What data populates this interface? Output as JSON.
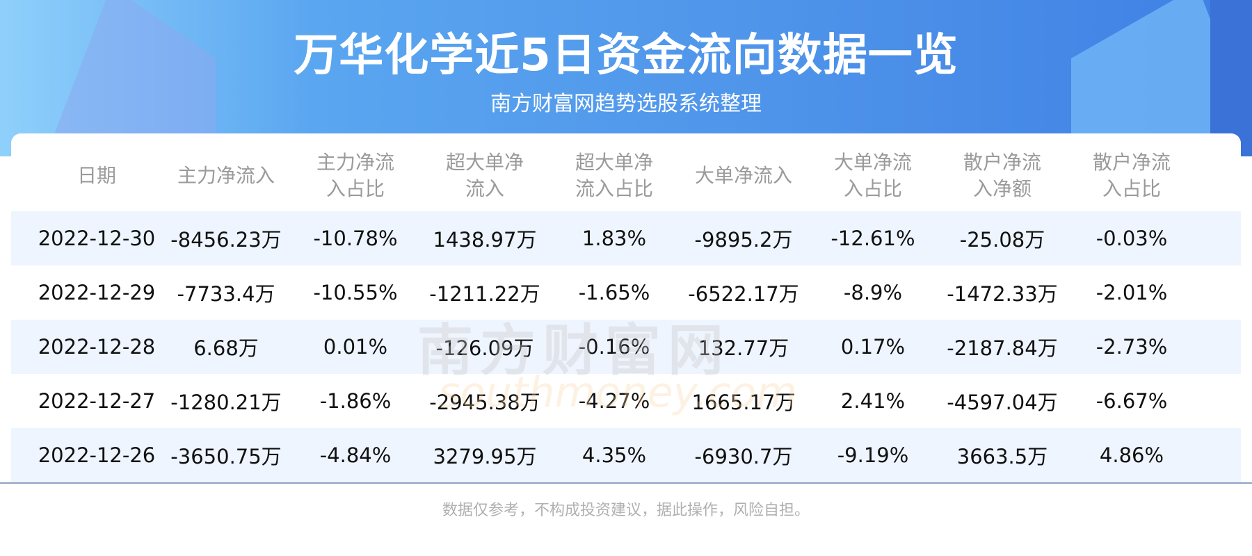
{
  "header": {
    "title": "万华化学近5日资金流向数据一览",
    "subtitle": "南方财富网趋势选股系统整理"
  },
  "table": {
    "columns": [
      "日期",
      "主力净流入",
      "主力净流入占比",
      "超大单净流入",
      "超大单净流入占比",
      "大单净流入",
      "大单净流入占比",
      "散户净流入净额",
      "散户净流入占比"
    ],
    "rows": [
      [
        "2022-12-30",
        "-8456.23万",
        "-10.78%",
        "1438.97万",
        "1.83%",
        "-9895.2万",
        "-12.61%",
        "-25.08万",
        "-0.03%"
      ],
      [
        "2022-12-29",
        "-7733.4万",
        "-10.55%",
        "-1211.22万",
        "-1.65%",
        "-6522.17万",
        "-8.9%",
        "-1472.33万",
        "-2.01%"
      ],
      [
        "2022-12-28",
        "6.68万",
        "0.01%",
        "-126.09万",
        "-0.16%",
        "132.77万",
        "0.17%",
        "-2187.84万",
        "-2.73%"
      ],
      [
        "2022-12-27",
        "-1280.21万",
        "-1.86%",
        "-2945.38万",
        "-4.27%",
        "1665.17万",
        "2.41%",
        "-4597.04万",
        "-6.67%"
      ],
      [
        "2022-12-26",
        "-3650.75万",
        "-4.84%",
        "3279.95万",
        "4.35%",
        "-6930.7万",
        "-9.19%",
        "3663.5万",
        "4.86%"
      ]
    ]
  },
  "watermark": {
    "cn": "南方财富网",
    "en": "southmoney.com"
  },
  "footer": "数据仅参考，不构成投资建议，据此操作，风险自担。",
  "colors": {
    "banner": "#4f95ea",
    "row_alt": "#eef5fe",
    "header_text": "#9a9a9a"
  }
}
